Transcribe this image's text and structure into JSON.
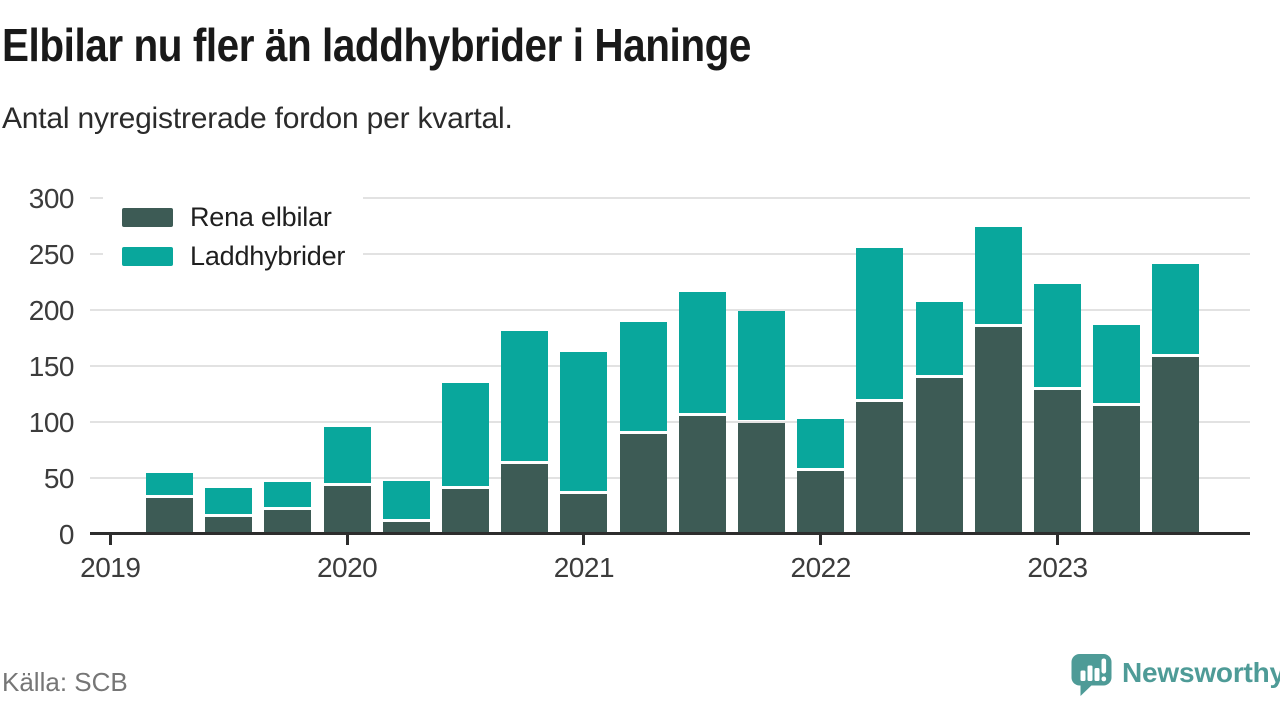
{
  "title": "Elbilar nu fler än laddhybrider i Haninge",
  "subtitle": "Antal nyregistrerade fordon per kvartal.",
  "source": "Källa: SCB",
  "branding": {
    "logo_text": "Newsworthy",
    "logo_icon": "bar-chart-speech-bubble-icon",
    "brand_color": "#4e9b97"
  },
  "colors": {
    "rena_elbilar": "#3d5b55",
    "laddhybrider": "#09a79c",
    "grid": "#e2e2e2",
    "axis": "#2d2d2d",
    "title_text": "#191919",
    "axis_text": "#3c3c3c",
    "source_text": "#767676"
  },
  "chart_data": {
    "type": "bar",
    "stacked": true,
    "title": "Elbilar nu fler än laddhybrider i Haninge",
    "subtitle": "Antal nyregistrerade fordon per kvartal.",
    "categories": [
      "2019 Q2",
      "2019 Q3",
      "2019 Q4",
      "2020 Q1",
      "2020 Q2",
      "2020 Q3",
      "2020 Q4",
      "2021 Q1",
      "2021 Q2",
      "2021 Q3",
      "2021 Q4",
      "2022 Q1",
      "2022 Q2",
      "2022 Q3",
      "2022 Q4",
      "2023 Q1",
      "2023 Q2",
      "2023 Q3"
    ],
    "series": [
      {
        "name": "Rena elbilar",
        "color": "#3d5b55",
        "values": [
          32,
          15,
          21,
          42,
          10,
          40,
          62,
          35,
          89,
          105,
          99,
          56,
          117,
          139,
          184,
          128,
          114,
          158
        ]
      },
      {
        "name": "Laddhybrider",
        "color": "#09a79c",
        "values": [
          22,
          26,
          25,
          53,
          37,
          94,
          119,
          127,
          100,
          111,
          100,
          46,
          138,
          68,
          90,
          95,
          72,
          83
        ]
      }
    ],
    "totals": [
      54,
      41,
      46,
      95,
      47,
      134,
      181,
      162,
      189,
      216,
      199,
      102,
      255,
      207,
      274,
      223,
      186,
      241
    ],
    "y_axis": {
      "ticks": [
        0,
        50,
        100,
        150,
        200,
        250,
        300
      ],
      "range": [
        0,
        300
      ],
      "grid": true
    },
    "x_axis": {
      "years": [
        "2019",
        "2020",
        "2021",
        "2022",
        "2023"
      ]
    },
    "legend_position": "top-left"
  }
}
